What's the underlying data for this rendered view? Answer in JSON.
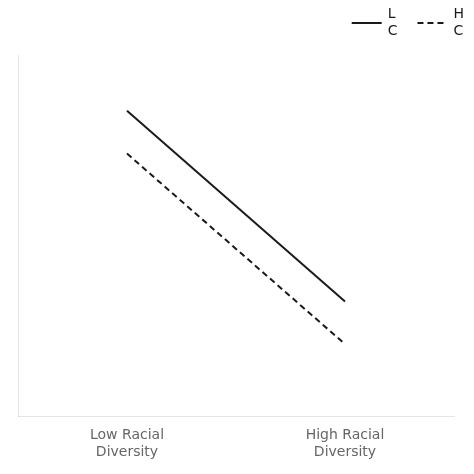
{
  "chart_data": {
    "type": "line",
    "categories": [
      "Low Racial\nDiversity",
      "High Racial\nDiversity"
    ],
    "series": [
      {
        "name": "L\nC",
        "color": "#1a1a1a",
        "line_style": "solid",
        "values": [
          0.88,
          0.3
        ]
      },
      {
        "name": "H\nC",
        "color": "#1a1a1a",
        "line_style": "dashed",
        "values": [
          0.75,
          0.17
        ]
      }
    ],
    "ylim": [
      -0.05,
      1.05
    ],
    "tick_labels": "x",
    "grid": false,
    "legend": "upper right"
  }
}
